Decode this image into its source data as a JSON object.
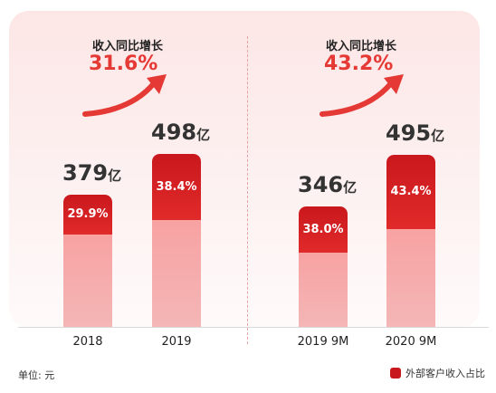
{
  "chart_data": {
    "type": "bar",
    "unit_note": "单位: 元",
    "categories": [
      "2018",
      "2019",
      "2019 9M",
      "2020 9M"
    ],
    "totals": [
      379,
      498,
      346,
      495
    ],
    "total_labels": [
      "379",
      "498",
      "346",
      "495"
    ],
    "total_unit": "亿",
    "series": [
      {
        "name": "外部客户收入占比",
        "values": [
          29.9,
          38.4,
          38.0,
          43.4
        ],
        "labels": [
          "29.9%",
          "38.4%",
          "38.0%",
          "43.4%"
        ],
        "color": "#c9181d"
      }
    ],
    "growth": [
      {
        "label": "收入同比增长",
        "value": "31.6%"
      },
      {
        "label": "收入同比增长",
        "value": "43.2%"
      }
    ],
    "accent_color": "#e53935"
  }
}
